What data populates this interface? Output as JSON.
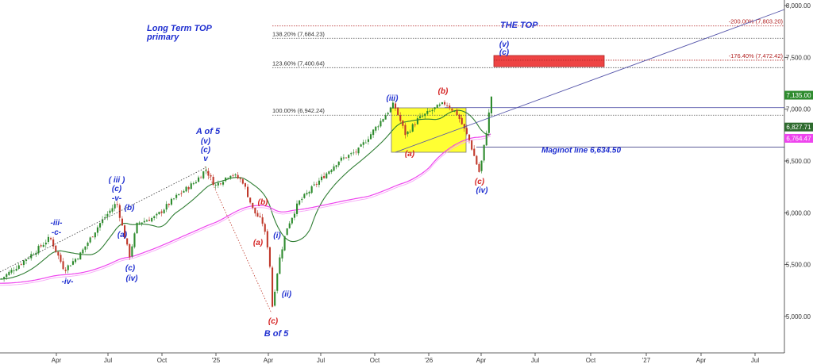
{
  "chart_data": {
    "type": "candlestick",
    "title": "",
    "xlabel": "",
    "ylabel": "",
    "ylim": [
      4800,
      8050
    ],
    "y_ticks": [
      "5,000.00",
      "5,500.00",
      "6,000.00",
      "6,500.00",
      "7,000.00",
      "7,500.00",
      "8,000.00"
    ],
    "y_tick_values": [
      5000,
      5500,
      6000,
      6500,
      7000,
      7500,
      8000
    ],
    "x_ticks": [
      "Apr",
      "Jul",
      "Oct",
      "'25",
      "Apr",
      "Jul",
      "Oct",
      "'26",
      "Apr",
      "Jul",
      "Oct",
      "'27",
      "Apr",
      "Jul"
    ],
    "price_path": [
      {
        "x": 0,
        "y": 5360
      },
      {
        "x": 20,
        "y": 5480
      },
      {
        "x": 45,
        "y": 5640
      },
      {
        "x": 62,
        "y": 5760
      },
      {
        "x": 80,
        "y": 5450
      },
      {
        "x": 100,
        "y": 5600
      },
      {
        "x": 125,
        "y": 5900
      },
      {
        "x": 146,
        "y": 6100
      },
      {
        "x": 155,
        "y": 5800
      },
      {
        "x": 162,
        "y": 5580
      },
      {
        "x": 172,
        "y": 5900
      },
      {
        "x": 195,
        "y": 5960
      },
      {
        "x": 220,
        "y": 6150
      },
      {
        "x": 245,
        "y": 6300
      },
      {
        "x": 258,
        "y": 6420
      },
      {
        "x": 270,
        "y": 6260
      },
      {
        "x": 290,
        "y": 6380
      },
      {
        "x": 305,
        "y": 6300
      },
      {
        "x": 318,
        "y": 6020
      },
      {
        "x": 330,
        "y": 5900
      },
      {
        "x": 338,
        "y": 5600
      },
      {
        "x": 342,
        "y": 5100
      },
      {
        "x": 350,
        "y": 5520
      },
      {
        "x": 360,
        "y": 5850
      },
      {
        "x": 375,
        "y": 6100
      },
      {
        "x": 400,
        "y": 6300
      },
      {
        "x": 425,
        "y": 6500
      },
      {
        "x": 450,
        "y": 6600
      },
      {
        "x": 475,
        "y": 6850
      },
      {
        "x": 495,
        "y": 7050
      },
      {
        "x": 510,
        "y": 6750
      },
      {
        "x": 525,
        "y": 6900
      },
      {
        "x": 545,
        "y": 7000
      },
      {
        "x": 560,
        "y": 7060
      },
      {
        "x": 575,
        "y": 6950
      },
      {
        "x": 590,
        "y": 6700
      },
      {
        "x": 603,
        "y": 6380
      },
      {
        "x": 611,
        "y": 6750
      },
      {
        "x": 618,
        "y": 7130
      }
    ],
    "levels": [
      {
        "label": "138.20% (7,684.23)",
        "value": 7684.23,
        "color": "#555555",
        "style": "dotted"
      },
      {
        "label": "123.60% (7,400.64)",
        "value": 7400.64,
        "color": "#555555",
        "style": "dotted"
      },
      {
        "label": "100.00% (6,942.24)",
        "value": 6942.24,
        "color": "#555555",
        "style": "dotted"
      },
      {
        "label": "-200.00% (7,803.20)",
        "value": 7803.2,
        "color": "#b22222",
        "style": "dotted"
      },
      {
        "label": "-176.40% (7,472.42)",
        "value": 7472.42,
        "color": "#b22222",
        "style": "dotted"
      },
      {
        "label": "Maginot line 6,634.50",
        "value": 6634.5,
        "color": "#444488",
        "style": "solid"
      }
    ],
    "price_labels": [
      {
        "text": "7,135.00",
        "value": 7135,
        "bg": "#2e8b2e"
      },
      {
        "text": "6,827.71",
        "value": 6827.71,
        "bg": "#2e6b2e"
      },
      {
        "text": "6,764.47",
        "value": 6764.47,
        "bg": "#ee44ee"
      }
    ],
    "annotations": [
      {
        "text": "Long Term TOP",
        "color": "#1f2fd0"
      },
      {
        "text": "primary",
        "color": "#1f2fd0"
      },
      {
        "text": "THE TOP",
        "color": "#1f2fd0"
      },
      {
        "text": "-iii-",
        "color": "#1f2fd0"
      },
      {
        "text": "-c-",
        "color": "#1f2fd0"
      },
      {
        "text": "-iv-",
        "color": "#1f2fd0"
      },
      {
        "text": "( iii )",
        "color": "#1f2fd0"
      },
      {
        "text": "(c)",
        "color": "#1f2fd0"
      },
      {
        "text": "-v-",
        "color": "#1f2fd0"
      },
      {
        "text": "(b)",
        "color": "#1f2fd0"
      },
      {
        "text": "(a)",
        "color": "#1f2fd0"
      },
      {
        "text": "(c)",
        "color": "#1f2fd0"
      },
      {
        "text": "(iv)",
        "color": "#1f2fd0"
      },
      {
        "text": "A of 5",
        "color": "#1f2fd0"
      },
      {
        "text": "(v)",
        "color": "#1f2fd0"
      },
      {
        "text": "(c)",
        "color": "#1f2fd0"
      },
      {
        "text": "v",
        "color": "#1f2fd0"
      },
      {
        "text": "(b)",
        "color": "#d42020"
      },
      {
        "text": "(a)",
        "color": "#d42020"
      },
      {
        "text": "(i)",
        "color": "#1f2fd0"
      },
      {
        "text": "(ii)",
        "color": "#1f2fd0"
      },
      {
        "text": "(c)",
        "color": "#d42020"
      },
      {
        "text": "B of 5",
        "color": "#1f2fd0"
      },
      {
        "text": "(iii)",
        "color": "#1f2fd0"
      },
      {
        "text": "(a)",
        "color": "#d42020"
      },
      {
        "text": "(b)",
        "color": "#d42020"
      },
      {
        "text": "(c)",
        "color": "#d42020"
      },
      {
        "text": "(iv)",
        "color": "#1f2fd0"
      },
      {
        "text": "(v)",
        "color": "#1f2fd0"
      },
      {
        "text": "(c)",
        "color": "#1f2fd0"
      }
    ],
    "colors": {
      "up_candle": "#2e8b2e",
      "down_candle": "#c0392b",
      "ma_short": "#2e7d32",
      "ma_long": "#ee44ee",
      "target_box": "#ee4444",
      "consolidation_box": "#ffff33",
      "trendline": "#5555aa"
    },
    "grid": false,
    "legend": "none"
  }
}
